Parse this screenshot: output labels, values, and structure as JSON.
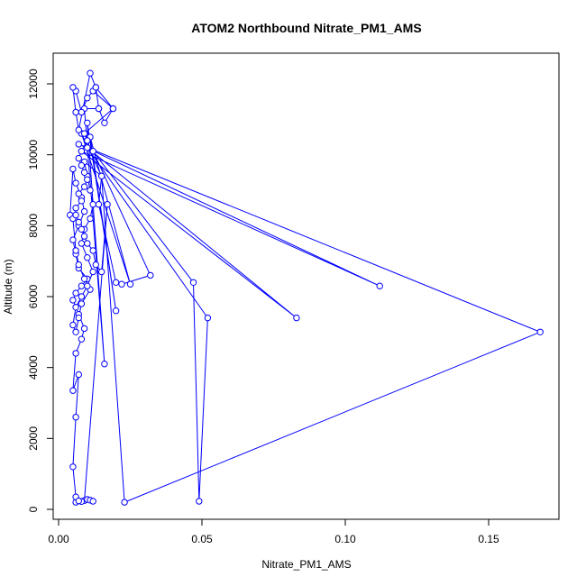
{
  "chart_data": {
    "type": "line",
    "title": "ATOM2 Northbound Nitrate_PM1_AMS",
    "xlabel": "Nitrate_PM1_AMS",
    "ylabel": "Altitude (m)",
    "xlim": [
      0.0,
      0.175
    ],
    "ylim": [
      0,
      12700
    ],
    "xticks": [
      0.0,
      0.05,
      0.1,
      0.15
    ],
    "xtick_labels": [
      "0.00",
      "0.05",
      "0.10",
      "0.15"
    ],
    "yticks": [
      0,
      2000,
      4000,
      6000,
      8000,
      10000,
      12000
    ],
    "ytick_labels": [
      "0",
      "2000",
      "4000",
      "6000",
      "8000",
      "10000",
      "12000"
    ],
    "series_color": "#0000ff",
    "marker": "open-circle",
    "grid": false,
    "legend": "none",
    "series": [
      {
        "x": [
          0.006,
          0.006,
          0.005,
          0.006,
          0.007,
          0.005,
          0.006,
          0.008,
          0.009,
          0.007,
          0.005,
          0.006,
          0.008,
          0.01,
          0.007,
          0.006,
          0.005,
          0.007,
          0.009,
          0.008,
          0.006,
          0.005,
          0.004,
          0.005,
          0.006,
          0.007,
          0.009,
          0.011,
          0.008,
          0.007,
          0.006,
          0.005,
          0.006,
          0.008,
          0.01,
          0.012,
          0.01,
          0.008,
          0.009,
          0.011,
          0.012,
          0.011,
          0.01,
          0.009,
          0.015,
          0.014,
          0.02,
          0.022,
          0.032,
          0.012,
          0.047,
          0.049,
          0.052,
          0.01,
          0.083,
          0.008,
          0.112,
          0.007,
          0.168,
          0.023,
          0.015,
          0.008,
          0.025,
          0.011,
          0.02,
          0.01,
          0.016,
          0.009,
          0.014,
          0.013,
          0.019,
          0.012,
          0.01,
          0.008,
          0.006,
          0.005,
          0.006,
          0.007,
          0.011,
          0.013,
          0.014,
          0.016,
          0.019,
          0.009,
          0.01,
          0.008,
          0.007,
          0.008,
          0.009,
          0.01,
          0.009,
          0.007,
          0.008,
          0.006,
          0.006,
          0.007,
          0.008,
          0.009,
          0.01,
          0.012,
          0.013,
          0.015,
          0.017,
          0.009,
          0.008,
          0.007,
          0.01,
          0.011,
          0.012
        ],
        "y": [
          200,
          350,
          1200,
          2600,
          3800,
          3350,
          4400,
          4800,
          5100,
          5500,
          5900,
          6100,
          6300,
          6500,
          6800,
          7200,
          7600,
          8000,
          8400,
          8800,
          9200,
          9600,
          8300,
          8200,
          7300,
          6900,
          6500,
          6200,
          5800,
          5400,
          5000,
          5200,
          5700,
          6000,
          6300,
          6700,
          7100,
          7500,
          7900,
          8200,
          8600,
          9000,
          9400,
          9800,
          9400,
          8600,
          6400,
          6350,
          6600,
          10100,
          6400,
          230,
          5400,
          10200,
          5400,
          10100,
          6300,
          10300,
          5000,
          200,
          9400,
          10600,
          6350,
          10500,
          5600,
          10900,
          4100,
          11300,
          11300,
          11900,
          11300,
          11800,
          11600,
          11200,
          11800,
          11900,
          11200,
          10700,
          12300,
          11900,
          11300,
          10900,
          11300,
          10600,
          10400,
          10100,
          9900,
          9700,
          9500,
          9300,
          9100,
          8900,
          8700,
          8500,
          8300,
          8100,
          7900,
          7700,
          7500,
          7300,
          6900,
          6700,
          8600,
          250,
          220,
          240,
          280,
          260,
          230
        ]
      }
    ]
  }
}
